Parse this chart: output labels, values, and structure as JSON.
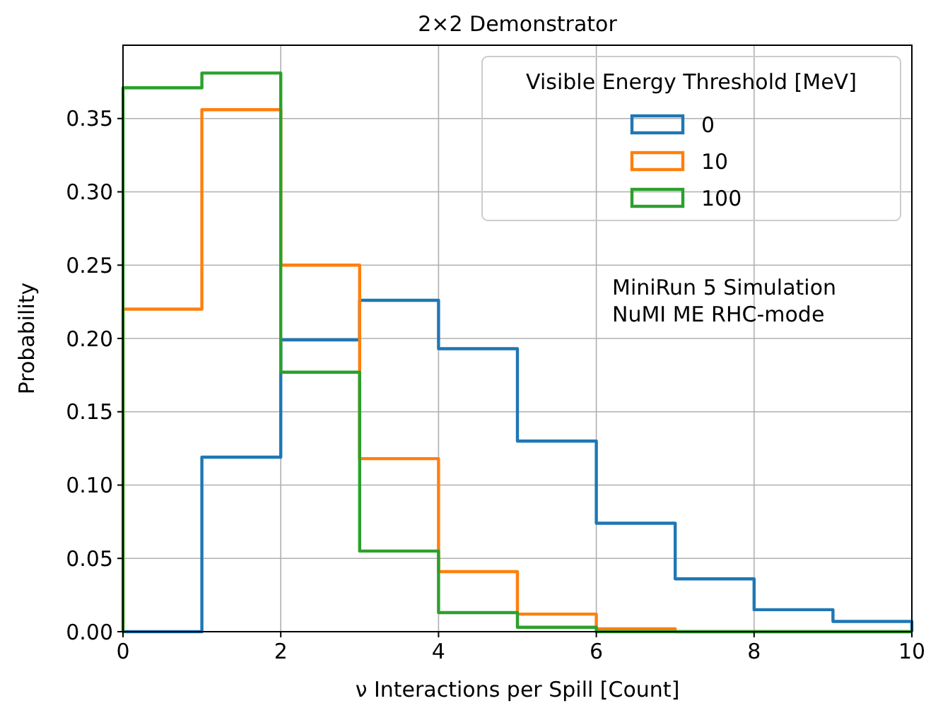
{
  "chart_data": {
    "type": "histogram",
    "title": "2×2 Demonstrator",
    "xlabel": "ν Interactions per Spill [Count]",
    "ylabel": "Probability",
    "legend_title": "Visible Energy Threshold [MeV]",
    "bins": [
      0,
      1,
      2,
      3,
      4,
      5,
      6,
      7,
      8,
      9,
      10
    ],
    "series": [
      {
        "name": "0",
        "color": "#1f77b4",
        "values": [
          0,
          0.119,
          0.199,
          0.226,
          0.193,
          0.13,
          0.074,
          0.036,
          0.015,
          0.007
        ]
      },
      {
        "name": "10",
        "color": "#ff7f0e",
        "values": [
          0.22,
          0.356,
          0.25,
          0.118,
          0.041,
          0.012,
          0.002,
          0,
          0,
          0
        ]
      },
      {
        "name": "100",
        "color": "#2ca02c",
        "values": [
          0.371,
          0.381,
          0.177,
          0.055,
          0.013,
          0.003,
          0,
          0,
          0,
          0
        ]
      }
    ],
    "xlim": [
      0,
      10
    ],
    "xticks": [
      0,
      2,
      4,
      6,
      8,
      10
    ],
    "ylim": [
      0,
      0.4
    ],
    "yticks": [
      {
        "value": 0,
        "label": "0.00"
      },
      {
        "value": 0.05,
        "label": "0.05"
      },
      {
        "value": 0.1,
        "label": "0.10"
      },
      {
        "value": 0.15,
        "label": "0.15"
      },
      {
        "value": 0.2,
        "label": "0.20"
      },
      {
        "value": 0.25,
        "label": "0.25"
      },
      {
        "value": 0.3,
        "label": "0.30"
      },
      {
        "value": 0.35,
        "label": "0.35"
      }
    ],
    "grid": true,
    "legend": "top right",
    "annotations": [
      "MiniRun 5 Simulation",
      "NuMI ME RHC-mode"
    ]
  }
}
